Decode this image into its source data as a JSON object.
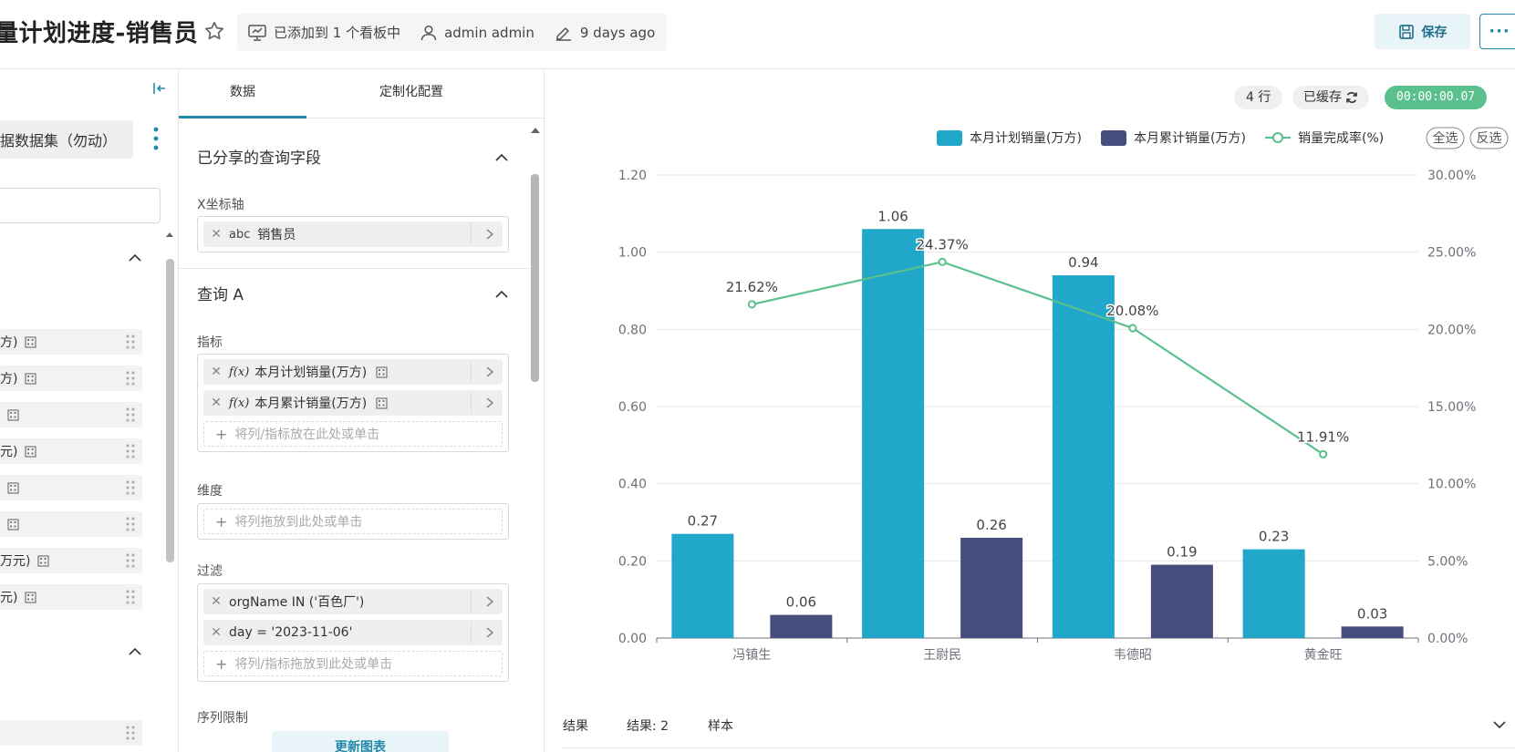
{
  "header": {
    "title": "量计划进度-销售员",
    "added_to": "已添加到 1 个看板中",
    "owner": "admin admin",
    "modified": "9 days ago",
    "save_label": "保存",
    "more_label": "···"
  },
  "left_panel": {
    "dataset_name": "据数据集（勿动）",
    "fields": [
      {
        "label": "方)"
      },
      {
        "label": "方)"
      },
      {
        "label": ""
      },
      {
        "label": "元)"
      },
      {
        "label": ""
      },
      {
        "label": ""
      },
      {
        "label": "万元)"
      },
      {
        "label": "元)"
      }
    ]
  },
  "mid_panel": {
    "tabs": [
      {
        "label": "数据"
      },
      {
        "label": "定制化配置"
      }
    ],
    "shared_section": {
      "title": "已分享的查询字段",
      "x_axis_label": "X坐标轴",
      "x_axis_field": {
        "type": "abc",
        "name": "销售员"
      }
    },
    "query_section": {
      "title": "查询 A",
      "metrics_label": "指标",
      "metrics": [
        {
          "fx": "f(x)",
          "name": "本月计划销量(万方)"
        },
        {
          "fx": "f(x)",
          "name": "本月累计销量(万方)"
        }
      ],
      "metrics_placeholder": "将列/指标放在此处或单击",
      "dimension_label": "维度",
      "dimension_placeholder": "将列拖放到此处或单击",
      "filter_label": "过滤",
      "filters": [
        {
          "expr": "orgName IN ('百色厂')"
        },
        {
          "expr": "day = '2023-11-06'"
        }
      ],
      "filter_placeholder": "将列/指标拖放到此处或单击",
      "series_limit_label": "序列限制"
    },
    "update_button": "更新图表"
  },
  "chart_panel": {
    "row_count": "4 行",
    "cached_label": "已缓存",
    "timer": "00:00:00.07",
    "legend_select_all": "全选",
    "legend_invert": "反选",
    "results_tabs": [
      "结果",
      "结果: 2",
      "样本"
    ]
  },
  "colors": {
    "accent": "#2389a8",
    "bar_plan": "#20a7c9",
    "bar_cumulative": "#454e7c",
    "line_rate": "#5ac18e",
    "timer_bg": "#5ac18e"
  },
  "chart_data": {
    "type": "bar",
    "categories": [
      "冯镇生",
      "王尉民",
      "韦德昭",
      "黄金旺"
    ],
    "series": [
      {
        "name": "本月计划销量(万方)",
        "kind": "bar",
        "axis": "left",
        "values": [
          0.27,
          1.06,
          0.94,
          0.23
        ],
        "labels": [
          "0.27",
          "1.06",
          "0.94",
          "0.23"
        ]
      },
      {
        "name": "本月累计销量(万方)",
        "kind": "bar",
        "axis": "left",
        "values": [
          0.06,
          0.26,
          0.19,
          0.03
        ],
        "labels": [
          "0.06",
          "0.26",
          "0.19",
          "0.03"
        ]
      },
      {
        "name": "销量完成率(%)",
        "kind": "line",
        "axis": "right",
        "values": [
          21.62,
          24.37,
          20.08,
          11.91
        ],
        "labels": [
          "21.62%",
          "24.37%",
          "20.08%",
          "11.91%"
        ]
      }
    ],
    "y_left": {
      "min": 0,
      "max": 1.2,
      "ticks": [
        "0.00",
        "0.20",
        "0.40",
        "0.60",
        "0.80",
        "1.00",
        "1.20"
      ]
    },
    "y_right": {
      "min": 0,
      "max": 30,
      "ticks": [
        "0.00%",
        "5.00%",
        "10.00%",
        "15.00%",
        "20.00%",
        "25.00%",
        "30.00%"
      ]
    },
    "legend_position": "top-right",
    "grid": true
  }
}
